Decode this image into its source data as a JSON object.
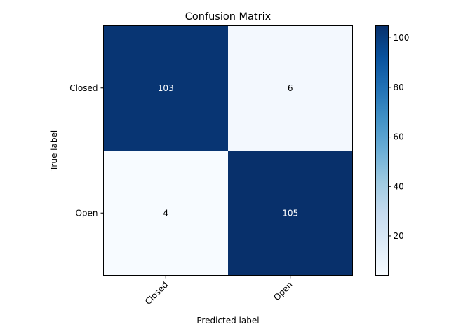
{
  "chart_data": {
    "type": "heatmap",
    "title": "Confusion Matrix",
    "xlabel": "Predicted label",
    "ylabel": "True label",
    "x_categories": [
      "Closed",
      "Open"
    ],
    "y_categories": [
      "Closed",
      "Open"
    ],
    "values": [
      [
        103,
        6
      ],
      [
        4,
        105
      ]
    ],
    "colormap": "Blues",
    "colorbar": {
      "range": [
        4,
        105
      ],
      "ticks": [
        20,
        40,
        60,
        80,
        100
      ]
    },
    "cell_text_colors": {
      "dark": "#ffffff",
      "light": "#000000"
    },
    "grid": false
  }
}
